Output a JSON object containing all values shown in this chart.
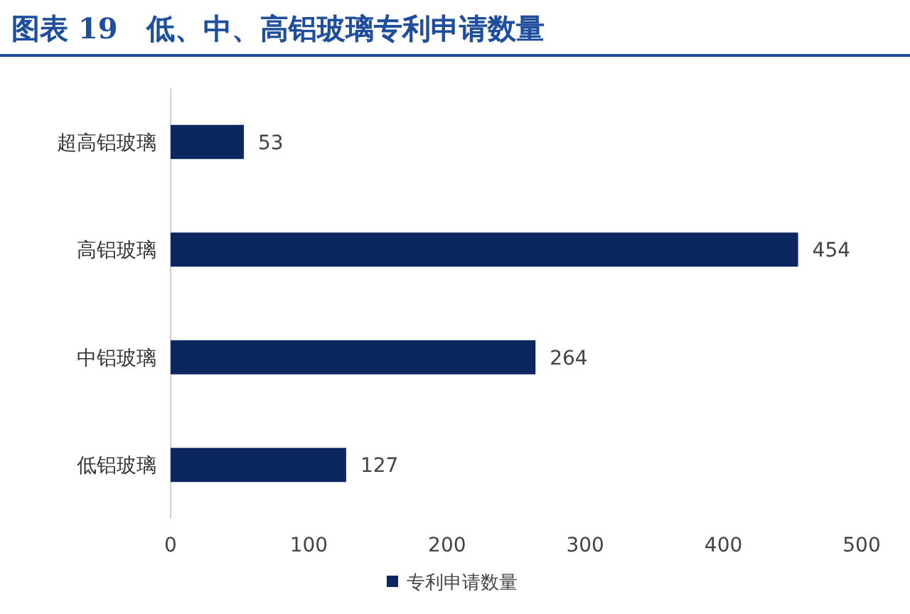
{
  "chart_data": {
    "type": "bar",
    "orientation": "horizontal",
    "title": "图表 19　低、中、高铝玻璃专利申请数量",
    "categories": [
      "超高铝玻璃",
      "高铝玻璃",
      "中铝玻璃",
      "低铝玻璃"
    ],
    "series": [
      {
        "name": "专利申请数量",
        "color": "#0c2660",
        "values": [
          53,
          454,
          264,
          127
        ]
      }
    ],
    "xlim": [
      0,
      500
    ],
    "xticks": [
      0,
      100,
      200,
      300,
      400,
      500
    ],
    "data_labels": true,
    "legend": "bottom",
    "grid": false
  }
}
